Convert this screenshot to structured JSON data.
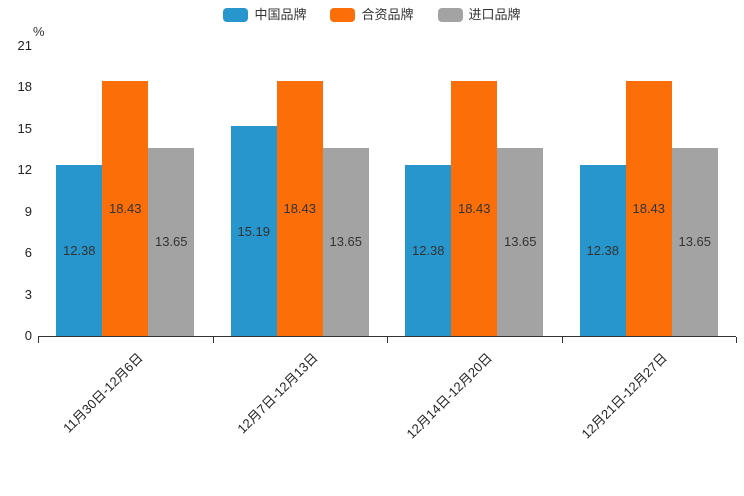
{
  "chart_data": {
    "type": "bar",
    "title": "",
    "xlabel": "",
    "ylabel": "%",
    "ylim": [
      0,
      21
    ],
    "yticks": [
      0,
      3,
      6,
      9,
      12,
      15,
      18,
      21
    ],
    "grid": false,
    "legend_position": "top",
    "categories": [
      "11月30日-12月6日",
      "12月7日-12月13日",
      "12月14日-12月20日",
      "12月21日-12月27日"
    ],
    "series": [
      {
        "name": "中国品牌",
        "color": "#2696cd",
        "values": [
          12.38,
          15.19,
          12.38,
          12.38
        ]
      },
      {
        "name": "合资品牌",
        "color": "#fc6e08",
        "values": [
          18.43,
          18.43,
          18.43,
          18.43
        ]
      },
      {
        "name": "进口品牌",
        "color": "#a3a3a3",
        "values": [
          13.65,
          13.65,
          13.65,
          13.65
        ]
      }
    ],
    "colors": {
      "axis": "#333333",
      "label_text": "#333333"
    }
  }
}
